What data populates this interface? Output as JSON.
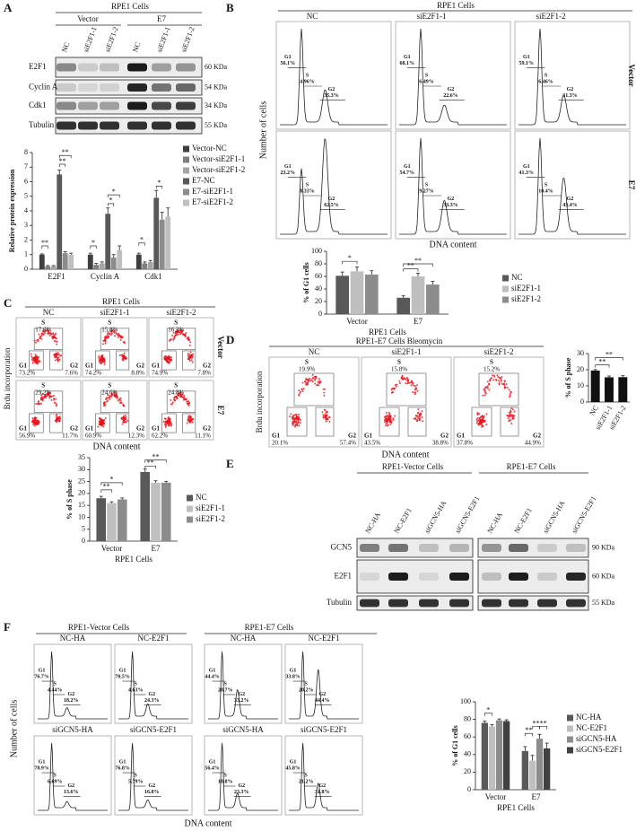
{
  "gates": [
    "G1",
    "S",
    "G2"
  ],
  "panel_a": {
    "label": "A",
    "title": "RPE1 Cells",
    "groups": [
      "Vector",
      "E7"
    ],
    "lanes": [
      "NC",
      "siE2F1-1",
      "siE2F1-2",
      "NC",
      "siE2F1-1",
      "siE2F1-2"
    ],
    "blots": [
      {
        "name": "E2F1",
        "size": "60 KDa"
      },
      {
        "name": "Cyclin A",
        "size": "54 KDa"
      },
      {
        "name": "Cdk1",
        "size": "34 KDa"
      },
      {
        "name": "Tubulin",
        "size": "55 KDa"
      }
    ],
    "chart": {
      "type": "bar",
      "ylabel": "Relative protein expression",
      "categories": [
        "E2F1",
        "Cyclin A",
        "Cdk1"
      ],
      "ylim": [
        0,
        8
      ],
      "yticks": [
        0,
        1,
        2,
        3,
        4,
        5,
        6,
        7,
        8
      ],
      "series": [
        {
          "name": "Vector-NC",
          "color": "#3f3f3f",
          "values": [
            1,
            1,
            1
          ],
          "errors": [
            0.05,
            0.1,
            0.1
          ]
        },
        {
          "name": "Vector-siE2F1-1",
          "color": "#7f7f7f",
          "values": [
            0.2,
            0.3,
            0.4
          ],
          "errors": [
            0.05,
            0.1,
            0.1
          ]
        },
        {
          "name": "Vector-siE2F1-2",
          "color": "#a5a5a5",
          "values": [
            0.2,
            0.4,
            0.5
          ],
          "errors": [
            0.05,
            0.1,
            0.1
          ]
        },
        {
          "name": "E7-NC",
          "color": "#595959",
          "values": [
            6.5,
            3.8,
            4.9
          ],
          "errors": [
            0.3,
            0.4,
            0.5
          ]
        },
        {
          "name": "E7-siE2F1-1",
          "color": "#8c8c8c",
          "values": [
            1.1,
            0.8,
            3.4
          ],
          "errors": [
            0.1,
            0.2,
            0.5
          ]
        },
        {
          "name": "E7-siE2F1-2",
          "color": "#bfbfbf",
          "values": [
            1,
            1.3,
            3.6
          ],
          "errors": [
            0.1,
            0.3,
            0.6
          ]
        }
      ],
      "significance": [
        "**",
        "**",
        "**",
        "*",
        "*",
        "*",
        "*",
        "*"
      ]
    }
  },
  "panel_b": {
    "label": "B",
    "title": "RPE1 Cells",
    "columns": [
      "NC",
      "siE2F1-1",
      "siE2F1-2"
    ],
    "rows": [
      "Vector",
      "E7"
    ],
    "ylabel": "Number of cells",
    "xlabel": "DNA content",
    "plots": [
      [
        [
          "56.1%",
          "4.96%",
          "35.3%"
        ],
        [
          "68.1%",
          "6.49%",
          "22.6%"
        ],
        [
          "59.1%",
          "6.46%",
          "31.3%"
        ]
      ],
      [
        [
          "23.2%",
          "8.33%",
          "62.5%"
        ],
        [
          "54.7%",
          "9.27%",
          "33.3%"
        ],
        [
          "41.3%",
          "10.4%",
          "43.4%"
        ]
      ]
    ],
    "chart": {
      "type": "bar",
      "ylabel": "% of G1 cells",
      "xlabel": "RPE1 Cells",
      "categories": [
        "Vector",
        "E7"
      ],
      "ylim": [
        0,
        100
      ],
      "yticks": [
        0,
        20,
        40,
        60,
        80,
        100
      ],
      "series": [
        {
          "name": "NC",
          "color": "#595959",
          "values": [
            61,
            26
          ],
          "errors": [
            6,
            3
          ]
        },
        {
          "name": "siE2F1-1",
          "color": "#bfbfbf",
          "values": [
            68,
            60
          ],
          "errors": [
            7,
            5
          ]
        },
        {
          "name": "siE2F1-2",
          "color": "#8c8c8c",
          "values": [
            63,
            47
          ],
          "errors": [
            6,
            5
          ]
        }
      ],
      "significance": [
        "*",
        "**",
        "**"
      ]
    }
  },
  "panel_c": {
    "label": "C",
    "title": "RPE1 Cells",
    "columns": [
      "NC",
      "siE2F1-1",
      "siE2F1-2"
    ],
    "rows": [
      "Vector",
      "E7"
    ],
    "ylabel": "Brdu incorporation",
    "xlabel": "DNA content",
    "plots": [
      [
        [
          "73.2%",
          "17.6%",
          "7.6%"
        ],
        [
          "74.2%",
          "15.8%",
          "8.8%"
        ],
        [
          "74.9%",
          "16.2%",
          "7.8%"
        ]
      ],
      [
        [
          "56.9%",
          "29.2%",
          "11.7%"
        ],
        [
          "60.9%",
          "24.6%",
          "12.3%"
        ],
        [
          "62.2%",
          "24.8%",
          "11.1%"
        ]
      ]
    ],
    "chart": {
      "type": "bar",
      "ylabel": "% of S phase",
      "xlabel": "RPE1 Cells",
      "categories": [
        "Vector",
        "E7"
      ],
      "ylim": [
        0,
        35
      ],
      "yticks": [
        0,
        5,
        10,
        15,
        20,
        25,
        30,
        35
      ],
      "series": [
        {
          "name": "NC",
          "color": "#595959",
          "values": [
            18,
            29
          ],
          "errors": [
            0.8,
            1.2
          ]
        },
        {
          "name": "siE2F1-1",
          "color": "#bfbfbf",
          "values": [
            16,
            24.5
          ],
          "errors": [
            0.5,
            0.8
          ]
        },
        {
          "name": "siE2F1-2",
          "color": "#8c8c8c",
          "values": [
            17.5,
            24.5
          ],
          "errors": [
            0.6,
            0.6
          ]
        }
      ],
      "significance": [
        "**",
        "*",
        "**",
        "**"
      ]
    }
  },
  "panel_d": {
    "label": "D",
    "title": "RPE1-E7 Cells Bleomycin",
    "columns": [
      "NC",
      "siE2F1-1",
      "siE2F1-2"
    ],
    "ylabel": "Brdu incorporation",
    "xlabel": "DNA content",
    "plots": [
      [
        "20.1%",
        "19.9%",
        "57.4%"
      ],
      [
        "43.5%",
        "15.8%",
        "38.8%"
      ],
      [
        "37.8%",
        "15.2%",
        "44.9%"
      ]
    ],
    "chart": {
      "type": "bar",
      "ylabel": "% of S phase",
      "categories": [
        "NC",
        "siE2F1-1",
        "siE2F1-2"
      ],
      "ylim": [
        0,
        30
      ],
      "yticks": [
        0,
        10,
        20,
        30
      ],
      "color": "#111111",
      "values": [
        19.5,
        15.3,
        15.4
      ],
      "errors": [
        0.6,
        0.8,
        0.9
      ],
      "significance": [
        "**",
        "**"
      ]
    }
  },
  "panel_e": {
    "label": "E",
    "groups": [
      "RPE1-Vector Cells",
      "RPE1-E7 Cells"
    ],
    "lanes": [
      "NC-HA",
      "NC-E2F1",
      "siGCN5-HA",
      "siGCN5-E2F1"
    ],
    "blots": [
      {
        "name": "GCN5",
        "size": "90 KDa"
      },
      {
        "name": "E2F1",
        "size": "60 KDa"
      },
      {
        "name": "Tubulin",
        "size": "55 KDa"
      }
    ]
  },
  "panel_f": {
    "label": "F",
    "groups": [
      "RPE1-Vector Cells",
      "RPE1-E7 Cells"
    ],
    "ylabel": "Number of cells",
    "xlabel": "DNA content",
    "plots": [
      [
        {
          "label": "NC-HA",
          "values": [
            "76.7%",
            "4.44%",
            "18.2%"
          ]
        },
        {
          "label": "NC-E2F1",
          "values": [
            "70.5%",
            "4.63%",
            "24.3%"
          ]
        },
        {
          "label": "NC-HA",
          "values": [
            "44.4%",
            "20.7%",
            "33.2%"
          ]
        },
        {
          "label": "NC-E2F1",
          "values": [
            "33.8%",
            "20.2%",
            "44.4%"
          ]
        }
      ],
      [
        {
          "label": "siGCN5-HA",
          "values": [
            "78.9%",
            "6.69%",
            "13.6%"
          ]
        },
        {
          "label": "siGCN5-E2F1",
          "values": [
            "76.8%",
            "5.79%",
            "16.8%"
          ]
        },
        {
          "label": "siGCN5-HA",
          "values": [
            "56.4%",
            "18.8%",
            "23.3%"
          ]
        },
        {
          "label": "siGCN5-E2F1",
          "values": [
            "45.8%",
            "21.2%",
            "31.8%"
          ]
        }
      ]
    ],
    "chart": {
      "type": "bar",
      "ylabel": "% of G1 cells",
      "xlabel": "RPE1 Cells",
      "categories": [
        "Vector",
        "E7"
      ],
      "ylim": [
        0,
        100
      ],
      "yticks": [
        0,
        20,
        40,
        60,
        80,
        100
      ],
      "series": [
        {
          "name": "NC-HA",
          "color": "#595959",
          "values": [
            76,
            44
          ],
          "errors": [
            2,
            5
          ]
        },
        {
          "name": "NC-E2F1",
          "color": "#bfbfbf",
          "values": [
            72,
            33
          ],
          "errors": [
            2,
            6
          ]
        },
        {
          "name": "siGCN5-HA",
          "color": "#8c8c8c",
          "values": [
            79,
            58
          ],
          "errors": [
            1.5,
            5
          ]
        },
        {
          "name": "siGCN5-E2F1",
          "color": "#404040",
          "values": [
            78,
            47
          ],
          "errors": [
            1.5,
            6
          ]
        }
      ],
      "significance": [
        "*",
        "**",
        "**",
        "**"
      ]
    }
  }
}
